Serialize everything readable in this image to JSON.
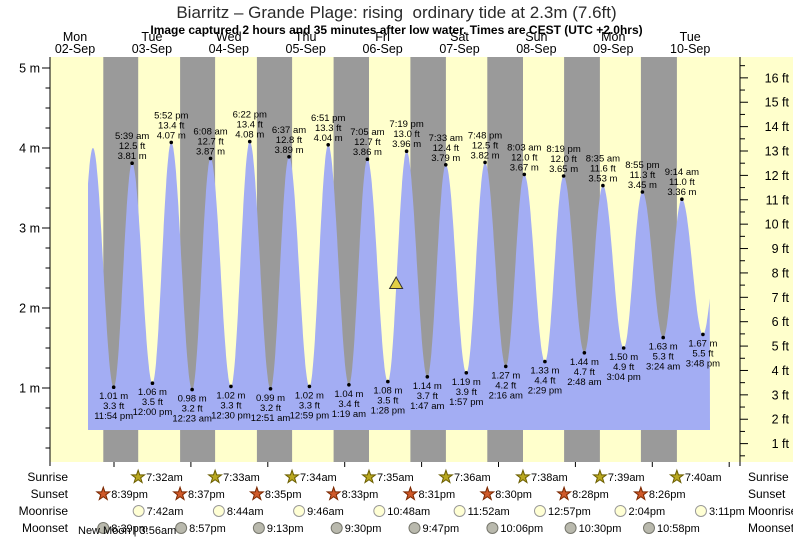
{
  "title": "Biarritz – Grande Plage: rising  ordinary tide at 2.3m (7.6ft)",
  "subtitle": "Image captured 2 hours and 35 minutes after low water. Times are CEST (UTC +2.0hrs)",
  "colors": {
    "day_band": "#ffffcc",
    "night_band": "#9a9a9a",
    "tide_fill": "#a3adf3",
    "date_label": "#ff4040",
    "axis": "#000000",
    "marker_fill": "#e3cf45",
    "marker_edge": "#333333",
    "sunrise_star": "#b9a820",
    "sunrise_star_edge": "#6b5e00",
    "sunset_star": "#d05a2a",
    "sunset_star_edge": "#7a2800",
    "moonrise_fill": "#ffffd4",
    "moonrise_edge": "#999999",
    "moonset_fill": "#b9b9ad",
    "moonset_edge": "#77776d"
  },
  "chart_data": {
    "type": "area",
    "ylabel_left_unit": "m",
    "ylabel_right_unit": "ft",
    "y_left_ticks": [
      5,
      4,
      3,
      2,
      1
    ],
    "y_right_ticks": [
      16,
      15,
      14,
      13,
      12,
      11,
      10,
      9,
      8,
      7,
      6,
      5,
      4,
      3,
      2,
      1
    ],
    "days": [
      {
        "name": "Mon",
        "date": "02-Sep"
      },
      {
        "name": "Tue",
        "date": "03-Sep"
      },
      {
        "name": "Wed",
        "date": "04-Sep"
      },
      {
        "name": "Thu",
        "date": "05-Sep"
      },
      {
        "name": "Fri",
        "date": "06-Sep"
      },
      {
        "name": "Sat",
        "date": "07-Sep"
      },
      {
        "name": "Sun",
        "date": "08-Sep"
      },
      {
        "name": "Mon",
        "date": "09-Sep"
      },
      {
        "name": "Tue",
        "date": "10-Sep"
      }
    ],
    "high_tides": [
      {
        "day": 2,
        "time": "5:39 am",
        "ft": "12.5 ft",
        "m": "3.81 m",
        "height_m": 3.81
      },
      {
        "day": 2,
        "time": "5:52 pm",
        "ft": "13.4 ft",
        "m": "4.07 m",
        "height_m": 4.07
      },
      {
        "day": 3,
        "time": "6:08 am",
        "ft": "12.7 ft",
        "m": "3.87 m",
        "height_m": 3.87
      },
      {
        "day": 3,
        "time": "6:22 pm",
        "ft": "13.4 ft",
        "m": "4.08 m",
        "height_m": 4.08
      },
      {
        "day": 4,
        "time": "6:37 am",
        "ft": "12.8 ft",
        "m": "3.89 m",
        "height_m": 3.89
      },
      {
        "day": 4,
        "time": "6:51 pm",
        "ft": "13.3 ft",
        "m": "4.04 m",
        "height_m": 4.04
      },
      {
        "day": 5,
        "time": "7:05 am",
        "ft": "12.7 ft",
        "m": "3.86 m",
        "height_m": 3.86
      },
      {
        "day": 5,
        "time": "7:19 pm",
        "ft": "13.0 ft",
        "m": "3.96 m",
        "height_m": 3.96
      },
      {
        "day": 6,
        "time": "7:33 am",
        "ft": "12.4 ft",
        "m": "3.79 m",
        "height_m": 3.79
      },
      {
        "day": 6,
        "time": "7:48 pm",
        "ft": "12.5 ft",
        "m": "3.82 m",
        "height_m": 3.82
      },
      {
        "day": 7,
        "time": "8:03 am",
        "ft": "12.0 ft",
        "m": "3.67 m",
        "height_m": 3.67
      },
      {
        "day": 7,
        "time": "8:19 pm",
        "ft": "12.0 ft",
        "m": "3.65 m",
        "height_m": 3.65
      },
      {
        "day": 8,
        "time": "8:35 am",
        "ft": "11.6 ft",
        "m": "3.53 m",
        "height_m": 3.53
      },
      {
        "day": 8,
        "time": "8:55 pm",
        "ft": "11.3 ft",
        "m": "3.45 m",
        "height_m": 3.45
      },
      {
        "day": 9,
        "time": "9:14 am",
        "ft": "11.0 ft",
        "m": "3.36 m",
        "height_m": 3.36
      }
    ],
    "low_tides": [
      {
        "day": 1,
        "time": "11:54 pm",
        "m": "1.01 m",
        "ft": "3.3 ft",
        "height_m": 1.01
      },
      {
        "day": 2,
        "time": "12:00 pm",
        "m": "1.06 m",
        "ft": "3.5 ft",
        "height_m": 1.06
      },
      {
        "day": 3,
        "time": "12:23 am",
        "m": "0.98 m",
        "ft": "3.2 ft",
        "height_m": 0.98
      },
      {
        "day": 3,
        "time": "12:30 pm",
        "m": "1.02 m",
        "ft": "3.3 ft",
        "height_m": 1.02
      },
      {
        "day": 4,
        "time": "12:51 am",
        "m": "0.99 m",
        "ft": "3.2 ft",
        "height_m": 0.99
      },
      {
        "day": 4,
        "time": "12:59 pm",
        "m": "1.02 m",
        "ft": "3.3 ft",
        "height_m": 1.02
      },
      {
        "day": 5,
        "time": "1:19 am",
        "m": "1.04 m",
        "ft": "3.4 ft",
        "height_m": 1.04
      },
      {
        "day": 5,
        "time": "1:28 pm",
        "m": "1.08 m",
        "ft": "3.5 ft",
        "height_m": 1.08
      },
      {
        "day": 6,
        "time": "1:47 am",
        "m": "1.14 m",
        "ft": "3.7 ft",
        "height_m": 1.14
      },
      {
        "day": 6,
        "time": "1:57 pm",
        "m": "1.19 m",
        "ft": "3.9 ft",
        "height_m": 1.19
      },
      {
        "day": 7,
        "time": "2:16 am",
        "m": "1.27 m",
        "ft": "4.2 ft",
        "height_m": 1.27
      },
      {
        "day": 7,
        "time": "2:29 pm",
        "m": "1.33 m",
        "ft": "4.4 ft",
        "height_m": 1.33
      },
      {
        "day": 8,
        "time": "2:48 am",
        "m": "1.44 m",
        "ft": "4.7 ft",
        "height_m": 1.44
      },
      {
        "day": 8,
        "time": "3:04 pm",
        "m": "1.50 m",
        "ft": "4.9 ft",
        "height_m": 1.5
      },
      {
        "day": 9,
        "time": "3:24 am",
        "m": "1.63 m",
        "ft": "5.3 ft",
        "height_m": 1.63
      },
      {
        "day": 9,
        "time": "3:48 pm",
        "m": "1.67 m",
        "ft": "5.5 ft",
        "height_m": 1.67
      }
    ],
    "curve_lead_in": [
      {
        "day": 1,
        "time": "11:20 am",
        "height_m": 1.0
      },
      {
        "day": 1,
        "time": "5:25 pm",
        "height_m": 4.0
      }
    ],
    "curve_tail": [
      {
        "day": 9,
        "time": "9:50 pm",
        "height_m": 3.3
      }
    ],
    "marker": {
      "day": 5,
      "time": "4:03 pm",
      "height_m": 2.3
    }
  },
  "astro": {
    "rows": [
      {
        "label": "Sunrise",
        "icon": "sunrise-star",
        "entries": [
          {
            "day": 2,
            "time": "7:32am"
          },
          {
            "day": 3,
            "time": "7:33am"
          },
          {
            "day": 4,
            "time": "7:34am"
          },
          {
            "day": 5,
            "time": "7:35am"
          },
          {
            "day": 6,
            "time": "7:36am"
          },
          {
            "day": 7,
            "time": "7:38am"
          },
          {
            "day": 8,
            "time": "7:39am"
          },
          {
            "day": 9,
            "time": "7:40am"
          }
        ]
      },
      {
        "label": "Sunset",
        "icon": "sunset-star",
        "entries": [
          {
            "day": 1,
            "time": "8:39pm"
          },
          {
            "day": 2,
            "time": "8:37pm"
          },
          {
            "day": 3,
            "time": "8:35pm"
          },
          {
            "day": 4,
            "time": "8:33pm"
          },
          {
            "day": 5,
            "time": "8:31pm"
          },
          {
            "day": 6,
            "time": "8:30pm"
          },
          {
            "day": 7,
            "time": "8:28pm"
          },
          {
            "day": 8,
            "time": "8:26pm"
          }
        ]
      },
      {
        "label": "Moonrise",
        "icon": "moonrise-circle",
        "entries": [
          {
            "day": 2,
            "time": "7:42am"
          },
          {
            "day": 3,
            "time": "8:44am"
          },
          {
            "day": 4,
            "time": "9:46am"
          },
          {
            "day": 5,
            "time": "10:48am"
          },
          {
            "day": 6,
            "time": "11:52am"
          },
          {
            "day": 7,
            "time": "12:57pm"
          },
          {
            "day": 8,
            "time": "2:04pm"
          },
          {
            "day": 9,
            "time": "3:11pm"
          }
        ]
      },
      {
        "label": "Moonset",
        "icon": "moonset-circle",
        "entries": [
          {
            "day": 1,
            "time": "8:39pm"
          },
          {
            "day": 2,
            "time": "8:57pm"
          },
          {
            "day": 3,
            "time": "9:13pm"
          },
          {
            "day": 4,
            "time": "9:30pm"
          },
          {
            "day": 5,
            "time": "9:47pm"
          },
          {
            "day": 6,
            "time": "10:06pm"
          },
          {
            "day": 7,
            "time": "10:30pm"
          },
          {
            "day": 8,
            "time": "10:58pm"
          }
        ]
      }
    ],
    "new_moon": "New Moon | 3:56am"
  }
}
